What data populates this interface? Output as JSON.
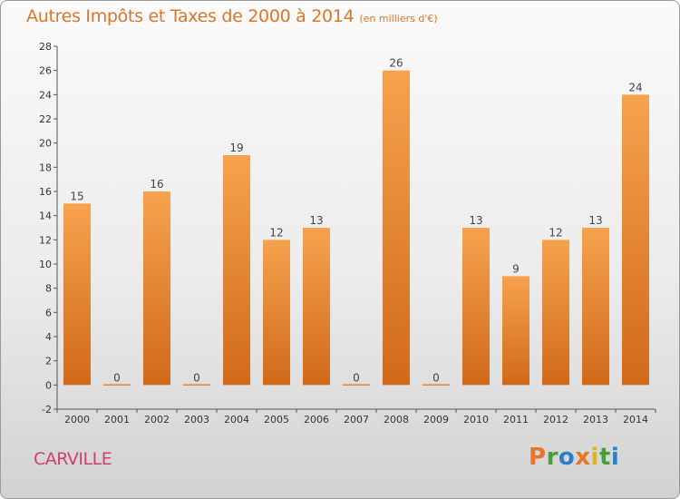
{
  "chart_data": {
    "type": "bar",
    "title": "Autres Impôts et Taxes de 2000 à 2014",
    "unit": "(en milliers d'€)",
    "categories": [
      "2000",
      "2001",
      "2002",
      "2003",
      "2004",
      "2005",
      "2006",
      "2007",
      "2008",
      "2009",
      "2010",
      "2011",
      "2012",
      "2013",
      "2014"
    ],
    "values": [
      15,
      0,
      16,
      0,
      19,
      12,
      13,
      0,
      26,
      0,
      13,
      9,
      12,
      13,
      24
    ],
    "data_labels": [
      "15",
      "0",
      "16",
      "0",
      "19",
      "12",
      "13",
      "0",
      "26",
      "0",
      "13",
      "9",
      "12",
      "13",
      "24"
    ],
    "ylim": [
      -2,
      28
    ],
    "yticks": [
      -2,
      0,
      2,
      4,
      6,
      8,
      10,
      12,
      14,
      16,
      18,
      20,
      22,
      24,
      26,
      28
    ],
    "grid": false,
    "bar_color_light": "#f7a24e",
    "bar_color_dark": "#d06a1a"
  },
  "footer": {
    "place": "CARVILLE",
    "brand": "Proxiti",
    "brand_colors": [
      "#e8752a",
      "#4a9e3a",
      "#2a7fc8",
      "#e8752a",
      "#d8b81a",
      "#4a9e3a",
      "#2a7fc8"
    ]
  }
}
